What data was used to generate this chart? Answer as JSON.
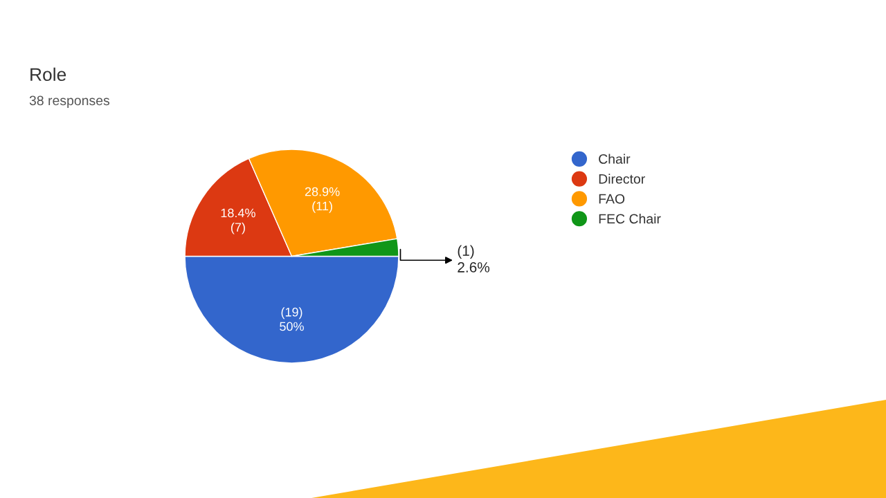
{
  "chart_data": {
    "type": "pie",
    "title": "Role",
    "subtitle": "38 responses",
    "categories": [
      "Chair",
      "Director",
      "FAO",
      "FEC Chair"
    ],
    "values": [
      19,
      7,
      11,
      1
    ],
    "colors": [
      "#3366cc",
      "#dc3912",
      "#ff9900",
      "#109618"
    ],
    "value_labels": [
      "(19)\n50%",
      "18.4%\n(7)",
      "28.9%\n(11)",
      "(1)\n2.6%"
    ],
    "legend": "right"
  }
}
